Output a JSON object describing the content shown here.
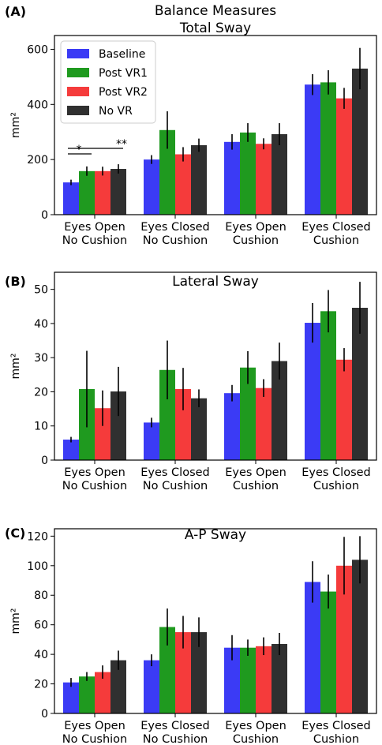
{
  "colors": {
    "Baseline": "#3b3bf5",
    "Post VR1": "#1f9a1f",
    "Post VR2": "#f53b3b",
    "No VR": "#303030"
  },
  "chart_data": [
    {
      "type": "bar",
      "panel_label": "(A)",
      "title": "Balance Measures\nTotal Sway",
      "ylabel": "mm²",
      "ylim": [
        0,
        650
      ],
      "yticks": [
        "0",
        "200",
        "400",
        "600"
      ],
      "categories": [
        "Eyes Open\nNo Cushion",
        "Eyes Closed\nNo Cushion",
        "Eyes Open\nCushion",
        "Eyes Closed\nCushion"
      ],
      "legend": {
        "placement": "top-left",
        "entries": [
          "Baseline",
          "Post VR1",
          "Post VR2",
          "No VR"
        ]
      },
      "series": [
        {
          "name": "Baseline",
          "values": [
            117,
            200,
            264,
            472
          ],
          "errors": [
            10,
            16,
            28,
            38
          ]
        },
        {
          "name": "Post VR1",
          "values": [
            158,
            307,
            298,
            480
          ],
          "errors": [
            17,
            68,
            34,
            44
          ]
        },
        {
          "name": "Post VR2",
          "values": [
            158,
            219,
            257,
            422
          ],
          "errors": [
            16,
            26,
            20,
            38
          ]
        },
        {
          "name": "No VR",
          "values": [
            166,
            252,
            292,
            530
          ],
          "errors": [
            17,
            24,
            40,
            75
          ]
        }
      ],
      "annotations": [
        {
          "text": "*",
          "from_series": 0,
          "to_series": 1,
          "category": 0
        },
        {
          "text": "**",
          "from_series": 0,
          "to_series": 3,
          "category": 0
        }
      ]
    },
    {
      "type": "bar",
      "panel_label": "(B)",
      "title": "Lateral Sway",
      "ylabel": "mm²",
      "ylim": [
        0,
        55
      ],
      "yticks": [
        "0",
        "10",
        "20",
        "30",
        "40",
        "50"
      ],
      "categories": [
        "Eyes Open\nNo Cushion",
        "Eyes Closed\nNo Cushion",
        "Eyes Open\nCushion",
        "Eyes Closed\nCushion"
      ],
      "series": [
        {
          "name": "Baseline",
          "values": [
            6,
            11,
            19.6,
            40.2
          ],
          "errors": [
            0.8,
            1.4,
            2.4,
            5.8
          ]
        },
        {
          "name": "Post VR1",
          "values": [
            20.8,
            26.4,
            27.1,
            43.6
          ],
          "errors": [
            11.2,
            8.6,
            4.8,
            6.2
          ]
        },
        {
          "name": "Post VR2",
          "values": [
            15.2,
            20.8,
            21.1,
            29.4
          ],
          "errors": [
            5.2,
            6.2,
            2.6,
            3.4
          ]
        },
        {
          "name": "No VR",
          "values": [
            20.1,
            18.1,
            29,
            44.6
          ],
          "errors": [
            7.2,
            2.6,
            5.4,
            7.6
          ]
        }
      ]
    },
    {
      "type": "bar",
      "panel_label": "(C)",
      "title": "A-P Sway",
      "ylabel": "mm²",
      "ylim": [
        0,
        125
      ],
      "yticks": [
        "0",
        "20",
        "40",
        "60",
        "80",
        "100",
        "120"
      ],
      "categories": [
        "Eyes Open\nNo Cushion",
        "Eyes Closed\nNo Cushion",
        "Eyes Open\nCushion",
        "Eyes Closed\nCushion"
      ],
      "series": [
        {
          "name": "Baseline",
          "values": [
            21,
            36,
            44.5,
            89
          ],
          "errors": [
            3,
            4,
            8.5,
            14
          ]
        },
        {
          "name": "Post VR1",
          "values": [
            25,
            58.5,
            44.5,
            82.5
          ],
          "errors": [
            3,
            12.5,
            5.5,
            11.5
          ]
        },
        {
          "name": "Post VR2",
          "values": [
            28,
            55,
            45.5,
            100
          ],
          "errors": [
            4.5,
            11,
            6,
            19.5
          ]
        },
        {
          "name": "No VR",
          "values": [
            36,
            55,
            47,
            104
          ],
          "errors": [
            6.5,
            10,
            7.5,
            16
          ]
        }
      ]
    }
  ]
}
